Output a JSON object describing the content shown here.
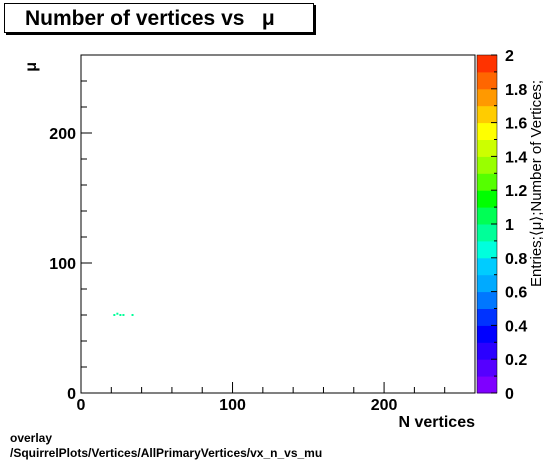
{
  "title": "Number of vertices vs   μ",
  "footer": {
    "line1": "overlay",
    "line2": "/SquirrelPlots/Vertices/AllPrimaryVertices/vx_n_vs_mu"
  },
  "colors": {
    "palette": [
      "#7f00ff",
      "#5500ff",
      "#2b00ff",
      "#0000ff",
      "#0033ff",
      "#0077ff",
      "#00aaff",
      "#00ccff",
      "#00ffdd",
      "#00ff99",
      "#00ff55",
      "#00ff00",
      "#55ff00",
      "#99ff00",
      "#ccff00",
      "#ffff00",
      "#ffcc00",
      "#ff9900",
      "#ff6600",
      "#ff3300"
    ]
  },
  "chart_data": {
    "type": "heatmap",
    "title": "Number of vertices vs   μ",
    "xlabel": "N vertices",
    "ylabel": "μ",
    "zlabel": "Entries;⟨μ⟩;Number of Vertices;",
    "xlim": [
      0,
      260
    ],
    "ylim": [
      0,
      260
    ],
    "zlim": [
      0,
      2
    ],
    "x_ticks": [
      "0",
      "100",
      "200"
    ],
    "y_ticks": [
      "0",
      "100",
      "200"
    ],
    "z_ticks": [
      "0",
      "0.2",
      "0.4",
      "0.6",
      "0.8",
      "1",
      "1.2",
      "1.4",
      "1.6",
      "1.8",
      "2"
    ],
    "cells": [
      {
        "x": 22,
        "y": 60,
        "z": 1
      },
      {
        "x": 24,
        "y": 61,
        "z": 1
      },
      {
        "x": 26,
        "y": 60,
        "z": 1
      },
      {
        "x": 28,
        "y": 60,
        "z": 1
      },
      {
        "x": 34,
        "y": 60,
        "z": 1
      }
    ]
  }
}
